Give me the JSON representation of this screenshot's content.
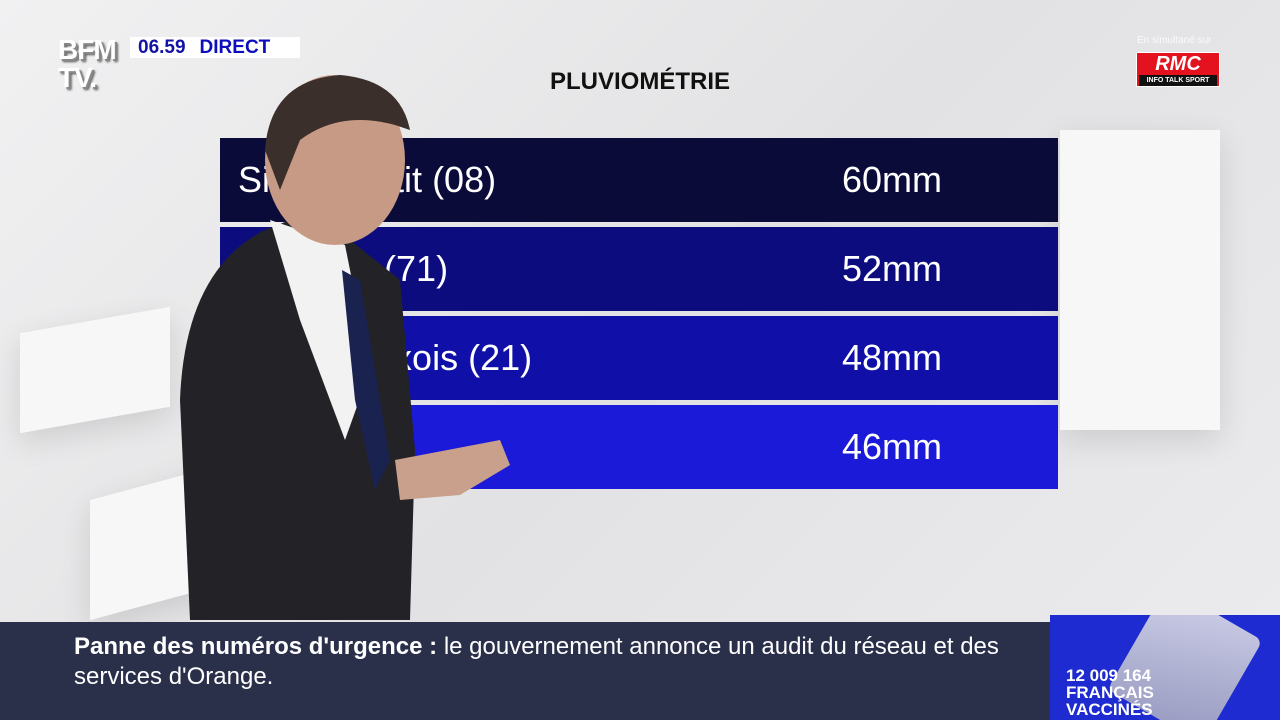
{
  "channel": {
    "logo": "BFM TV.",
    "time": "06.59",
    "live": "DIRECT"
  },
  "simulcast": {
    "note": "En simultané sur",
    "logo": "RMC",
    "tagline": "INFO TALK SPORT"
  },
  "graphic": {
    "title": "PLUVIOMÉTRIE",
    "rows": [
      {
        "name": "Si        Petit (08)",
        "value": "60mm",
        "color": "#0b0b3a"
      },
      {
        "name": "         les (71)",
        "value": "52mm",
        "color": "#0c0c7e"
      },
      {
        "name": "        n-Auxois (21)",
        "value": "48mm",
        "color": "#1010a8"
      },
      {
        "name": "",
        "value": "46mm",
        "color": "#1a1ad8"
      }
    ]
  },
  "ticker": {
    "headline": "Panne des numéros d'urgence",
    "separator": ":",
    "text": "le gouvernement annonce un audit du réseau et des services d'Orange."
  },
  "promo": {
    "line1": "12 009 164",
    "line2": "FRANÇAIS",
    "line3": "VACCINÉS"
  }
}
